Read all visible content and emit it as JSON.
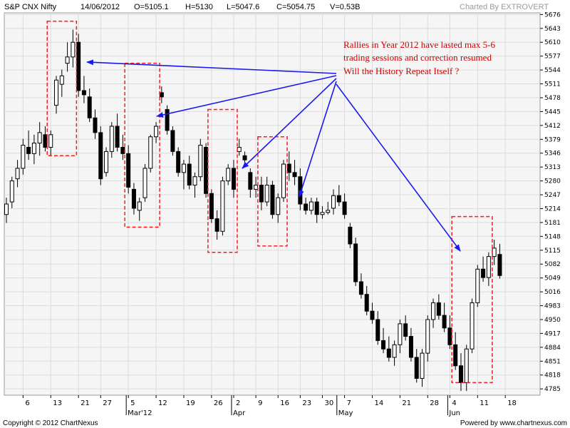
{
  "header": {
    "symbol": "S&P CNX Nifty",
    "date": "14/06/2012",
    "open": "O=5105.1",
    "high": "H=5130",
    "low": "L=5047.6",
    "close": "C=5054.75",
    "volume": "V=0.53B",
    "charted_by": "Charted By EXTROVERT"
  },
  "footer": {
    "copyright": "Copyright © 2012 ChartNexus",
    "powered_by": "Powered by www.chartnexus.com"
  },
  "annotation": {
    "lines": [
      "Rallies in Year 2012 have lasted max 5-6",
      "trading sessions and correction resumed",
      "Will the History Repeat Itself ?"
    ],
    "color": "#cc0000",
    "arrow_color": "#1a1aee"
  },
  "chart_data": {
    "type": "candlestick",
    "y_axis_ticks": [
      "5676",
      "5643",
      "5610",
      "5577",
      "5544",
      "5511",
      "5478",
      "5445",
      "5412",
      "5379",
      "5346",
      "5313",
      "5280",
      "5247",
      "5214",
      "5181",
      "5148",
      "5115",
      "5082",
      "5049",
      "5016",
      "4983",
      "4950",
      "4917",
      "4884",
      "4851",
      "4818",
      "4785"
    ],
    "ylim": [
      4770,
      5680
    ],
    "x_axis_ticks": [
      {
        "label": "6",
        "i": 3
      },
      {
        "label": "13",
        "i": 8
      },
      {
        "label": "21",
        "i": 13
      },
      {
        "label": "27",
        "i": 17
      },
      {
        "label": "5",
        "i": 22
      },
      {
        "label": "12",
        "i": 27
      },
      {
        "label": "19",
        "i": 32
      },
      {
        "label": "26",
        "i": 37
      },
      {
        "label": "2",
        "i": 41
      },
      {
        "label": "9",
        "i": 45
      },
      {
        "label": "16",
        "i": 49
      },
      {
        "label": "23",
        "i": 53
      },
      {
        "label": "30",
        "i": 57
      },
      {
        "label": "7",
        "i": 61
      },
      {
        "label": "14",
        "i": 66
      },
      {
        "label": "21",
        "i": 71
      },
      {
        "label": "28",
        "i": 76
      },
      {
        "label": "4",
        "i": 80
      },
      {
        "label": "11",
        "i": 85
      },
      {
        "label": "18",
        "i": 90
      }
    ],
    "month_labels": [
      {
        "label": "Mar'12",
        "i": 22
      },
      {
        "label": "Apr",
        "i": 41
      },
      {
        "label": "May",
        "i": 60
      },
      {
        "label": "Jun",
        "i": 80
      }
    ],
    "highlight_boxes": [
      {
        "from": 8,
        "to": 12,
        "low": 5340,
        "high": 5660
      },
      {
        "from": 22,
        "to": 27,
        "low": 5170,
        "high": 5560
      },
      {
        "from": 37,
        "to": 41,
        "low": 5110,
        "high": 5450
      },
      {
        "from": 46,
        "to": 50,
        "low": 5125,
        "high": 5385
      },
      {
        "from": 81,
        "to": 87,
        "low": 4800,
        "high": 5195
      }
    ],
    "candles": [
      [
        5200,
        5240,
        5180,
        5225
      ],
      [
        5230,
        5290,
        5215,
        5280
      ],
      [
        5285,
        5330,
        5265,
        5310
      ],
      [
        5310,
        5380,
        5295,
        5365
      ],
      [
        5360,
        5400,
        5330,
        5345
      ],
      [
        5345,
        5390,
        5320,
        5370
      ],
      [
        5370,
        5420,
        5340,
        5395
      ],
      [
        5390,
        5410,
        5350,
        5360
      ],
      [
        5360,
        5400,
        5340,
        5390
      ],
      [
        5460,
        5530,
        5440,
        5520
      ],
      [
        5510,
        5545,
        5480,
        5530
      ],
      [
        5560,
        5610,
        5540,
        5575
      ],
      [
        5575,
        5640,
        5550,
        5610
      ],
      [
        5610,
        5630,
        5480,
        5495
      ],
      [
        5495,
        5530,
        5465,
        5485
      ],
      [
        5480,
        5500,
        5420,
        5430
      ],
      [
        5430,
        5450,
        5380,
        5395
      ],
      [
        5395,
        5410,
        5270,
        5285
      ],
      [
        5300,
        5360,
        5290,
        5350
      ],
      [
        5350,
        5420,
        5335,
        5410
      ],
      [
        5410,
        5440,
        5350,
        5360
      ],
      [
        5360,
        5390,
        5330,
        5345
      ],
      [
        5345,
        5365,
        5250,
        5265
      ],
      [
        5260,
        5275,
        5200,
        5215
      ],
      [
        5210,
        5240,
        5185,
        5230
      ],
      [
        5240,
        5320,
        5230,
        5310
      ],
      [
        5310,
        5390,
        5300,
        5385
      ],
      [
        5385,
        5420,
        5370,
        5410
      ],
      [
        5490,
        5505,
        5465,
        5480
      ],
      [
        5450,
        5460,
        5390,
        5400
      ],
      [
        5400,
        5410,
        5340,
        5350
      ],
      [
        5350,
        5360,
        5290,
        5300
      ],
      [
        5300,
        5330,
        5260,
        5320
      ],
      [
        5320,
        5340,
        5260,
        5270
      ],
      [
        5270,
        5300,
        5240,
        5290
      ],
      [
        5290,
        5380,
        5280,
        5365
      ],
      [
        5360,
        5370,
        5240,
        5250
      ],
      [
        5250,
        5260,
        5180,
        5190
      ],
      [
        5190,
        5210,
        5140,
        5160
      ],
      [
        5160,
        5290,
        5150,
        5280
      ],
      [
        5280,
        5320,
        5270,
        5310
      ],
      [
        5310,
        5330,
        5240,
        5260
      ],
      [
        5350,
        5380,
        5340,
        5360
      ],
      [
        5340,
        5350,
        5320,
        5330
      ],
      [
        5300,
        5310,
        5240,
        5260
      ],
      [
        5260,
        5290,
        5240,
        5270
      ],
      [
        5270,
        5290,
        5210,
        5230
      ],
      [
        5230,
        5290,
        5220,
        5270
      ],
      [
        5270,
        5280,
        5190,
        5200
      ],
      [
        5200,
        5250,
        5180,
        5240
      ],
      [
        5240,
        5330,
        5230,
        5320
      ],
      [
        5320,
        5350,
        5280,
        5300
      ],
      [
        5300,
        5330,
        5270,
        5290
      ],
      [
        5290,
        5310,
        5210,
        5225
      ],
      [
        5225,
        5240,
        5200,
        5210
      ],
      [
        5210,
        5240,
        5200,
        5230
      ],
      [
        5230,
        5240,
        5180,
        5200
      ],
      [
        5200,
        5220,
        5190,
        5205
      ],
      [
        5205,
        5230,
        5200,
        5210
      ],
      [
        5215,
        5260,
        5200,
        5245
      ],
      [
        5245,
        5270,
        5220,
        5230
      ],
      [
        5230,
        5250,
        5190,
        5200
      ],
      [
        5170,
        5180,
        5120,
        5130
      ],
      [
        5130,
        5145,
        5030,
        5040
      ],
      [
        5040,
        5060,
        5000,
        5010
      ],
      [
        5010,
        5030,
        4960,
        4970
      ],
      [
        4970,
        4990,
        4940,
        4950
      ],
      [
        4950,
        4970,
        4890,
        4900
      ],
      [
        4900,
        4930,
        4870,
        4880
      ],
      [
        4880,
        4910,
        4850,
        4860
      ],
      [
        4860,
        4900,
        4840,
        4890
      ],
      [
        4890,
        4950,
        4870,
        4940
      ],
      [
        4940,
        4960,
        4900,
        4910
      ],
      [
        4910,
        4930,
        4850,
        4860
      ],
      [
        4860,
        4880,
        4800,
        4810
      ],
      [
        4810,
        4880,
        4790,
        4870
      ],
      [
        4870,
        4960,
        4850,
        4950
      ],
      [
        4950,
        5000,
        4930,
        4990
      ],
      [
        4990,
        5010,
        4950,
        4960
      ],
      [
        4960,
        4990,
        4920,
        4930
      ],
      [
        4930,
        4960,
        4880,
        4890
      ],
      [
        4890,
        4920,
        4830,
        4840
      ],
      [
        4840,
        4870,
        4780,
        4800
      ],
      [
        4800,
        4890,
        4780,
        4880
      ],
      [
        4880,
        5000,
        4870,
        4990
      ],
      [
        4990,
        5080,
        4980,
        5070
      ],
      [
        5070,
        5100,
        5040,
        5050
      ],
      [
        5050,
        5110,
        5030,
        5100
      ],
      [
        5100,
        5140,
        5080,
        5120
      ],
      [
        5105,
        5130,
        5047.6,
        5054.75
      ]
    ]
  }
}
